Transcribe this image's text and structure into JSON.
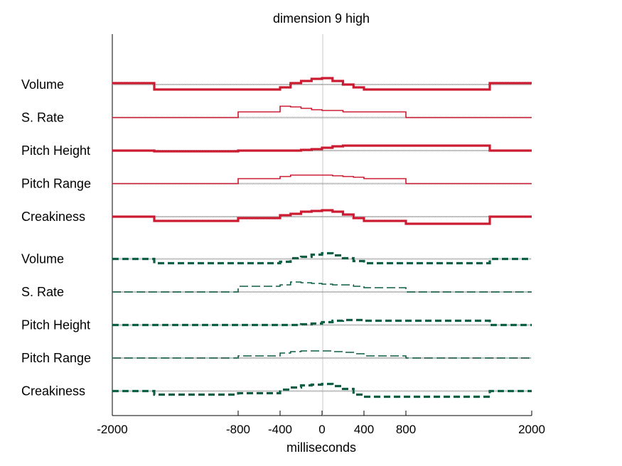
{
  "chart_data": {
    "type": "line",
    "title": "dimension  9 high",
    "xlabel": "milliseconds",
    "xlim": [
      -2000,
      2000
    ],
    "xticks": [
      -2000,
      -800,
      -400,
      0,
      400,
      800,
      2000
    ],
    "x_boundaries": [
      -2000,
      -1600,
      -800,
      -400,
      -300,
      -200,
      -100,
      0,
      100,
      200,
      300,
      400,
      800,
      1600,
      2000
    ],
    "colors": {
      "red": "#cc1a30",
      "green": "#0d5e44",
      "baseline": "#888888",
      "zero_line": "#c8c8c8"
    },
    "groups": [
      {
        "color": "red",
        "dash": "solid",
        "series": [
          {
            "name": "Volume",
            "width": 3.2,
            "values": [
              2,
              -7,
              -7,
              -4,
              2,
              5,
              8,
              9,
              5,
              0,
              -4,
              -7,
              -7,
              2
            ]
          },
          {
            "name": "S. Rate",
            "width": 1.6,
            "values": [
              0,
              0,
              8,
              16,
              15,
              13,
              11,
              10,
              10,
              8,
              8,
              8,
              0,
              0
            ]
          },
          {
            "name": "Pitch Height",
            "width": 3.2,
            "values": [
              0,
              -1,
              0,
              0,
              0,
              1,
              2,
              4,
              6,
              7,
              7,
              7,
              7,
              0
            ]
          },
          {
            "name": "Pitch Range",
            "width": 1.6,
            "values": [
              0,
              0,
              7,
              10,
              12,
              12,
              12,
              12,
              11,
              10,
              9,
              7,
              0,
              0
            ]
          },
          {
            "name": "Creakiness",
            "width": 3.2,
            "values": [
              0,
              -6,
              -2,
              2,
              4,
              7,
              8,
              9,
              7,
              3,
              -2,
              -6,
              -10,
              0
            ]
          }
        ]
      },
      {
        "color": "green",
        "dash": "dashed",
        "series": [
          {
            "name": "Volume",
            "width": 3.2,
            "values": [
              0,
              -6,
              -6,
              -4,
              1,
              3,
              6,
              8,
              5,
              1,
              -3,
              -6,
              -6,
              0
            ]
          },
          {
            "name": "S. Rate",
            "width": 1.6,
            "values": [
              0,
              0,
              8,
              10,
              14,
              13,
              12,
              11,
              10,
              10,
              8,
              6,
              0,
              0
            ]
          },
          {
            "name": "Pitch Height",
            "width": 3.2,
            "values": [
              0,
              0,
              0,
              0,
              0,
              1,
              2,
              4,
              6,
              7,
              7,
              6,
              6,
              0
            ]
          },
          {
            "name": "Pitch Range",
            "width": 1.6,
            "values": [
              0,
              0,
              3,
              7,
              9,
              10,
              10,
              10,
              9,
              8,
              6,
              3,
              0,
              0
            ]
          },
          {
            "name": "Creakiness",
            "width": 3.2,
            "values": [
              0,
              -5,
              -3,
              2,
              5,
              8,
              9,
              10,
              7,
              3,
              -5,
              -8,
              -8,
              0
            ]
          }
        ]
      }
    ]
  }
}
